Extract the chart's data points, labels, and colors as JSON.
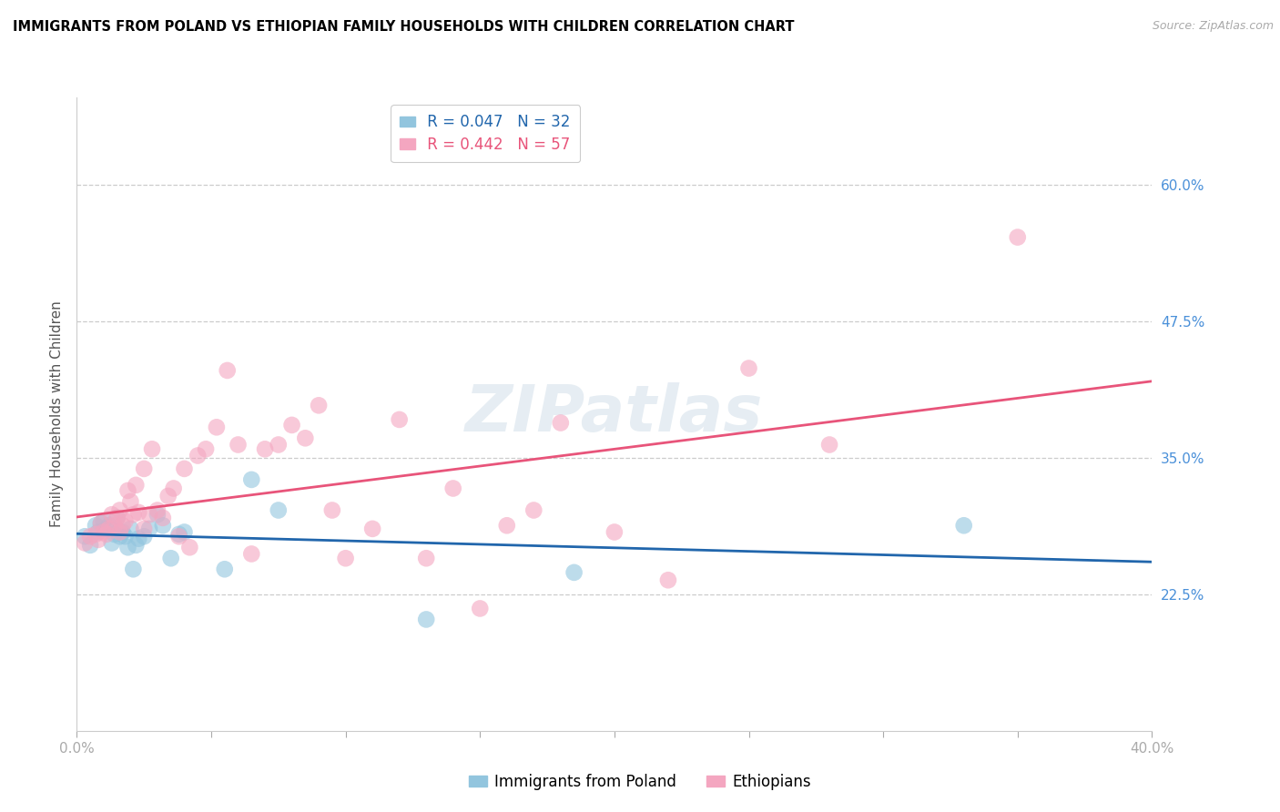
{
  "title": "IMMIGRANTS FROM POLAND VS ETHIOPIAN FAMILY HOUSEHOLDS WITH CHILDREN CORRELATION CHART",
  "source": "Source: ZipAtlas.com",
  "ylabel": "Family Households with Children",
  "ytick_labels": [
    "22.5%",
    "35.0%",
    "47.5%",
    "60.0%"
  ],
  "ytick_values": [
    0.225,
    0.35,
    0.475,
    0.6
  ],
  "xlim": [
    0.0,
    0.4
  ],
  "ylim": [
    0.1,
    0.68
  ],
  "legend_poland_R": "0.047",
  "legend_poland_N": "32",
  "legend_ethiopia_R": "0.442",
  "legend_ethiopia_N": "57",
  "scatter_color_poland": "#92c5de",
  "scatter_color_ethiopia": "#f4a6c0",
  "line_color_poland": "#2166ac",
  "line_color_ethiopia": "#e8547a",
  "label_color": "#4a90d9",
  "watermark": "ZIPatlas",
  "poland_x": [
    0.003,
    0.005,
    0.007,
    0.008,
    0.009,
    0.01,
    0.011,
    0.012,
    0.013,
    0.014,
    0.015,
    0.016,
    0.017,
    0.018,
    0.019,
    0.02,
    0.021,
    0.022,
    0.023,
    0.025,
    0.027,
    0.03,
    0.032,
    0.035,
    0.038,
    0.04,
    0.055,
    0.065,
    0.075,
    0.13,
    0.185,
    0.33
  ],
  "poland_y": [
    0.278,
    0.27,
    0.288,
    0.282,
    0.29,
    0.292,
    0.285,
    0.288,
    0.272,
    0.28,
    0.295,
    0.278,
    0.282,
    0.278,
    0.268,
    0.285,
    0.248,
    0.27,
    0.276,
    0.278,
    0.285,
    0.298,
    0.288,
    0.258,
    0.28,
    0.282,
    0.248,
    0.33,
    0.302,
    0.202,
    0.245,
    0.288
  ],
  "ethiopia_x": [
    0.003,
    0.005,
    0.007,
    0.008,
    0.009,
    0.01,
    0.011,
    0.012,
    0.013,
    0.014,
    0.015,
    0.016,
    0.016,
    0.017,
    0.018,
    0.019,
    0.02,
    0.021,
    0.022,
    0.023,
    0.025,
    0.025,
    0.027,
    0.028,
    0.03,
    0.032,
    0.034,
    0.036,
    0.038,
    0.04,
    0.042,
    0.045,
    0.048,
    0.052,
    0.056,
    0.06,
    0.065,
    0.07,
    0.075,
    0.08,
    0.085,
    0.09,
    0.095,
    0.1,
    0.11,
    0.12,
    0.13,
    0.14,
    0.15,
    0.16,
    0.17,
    0.18,
    0.2,
    0.22,
    0.25,
    0.28,
    0.35
  ],
  "ethiopia_y": [
    0.272,
    0.278,
    0.28,
    0.275,
    0.29,
    0.282,
    0.28,
    0.285,
    0.298,
    0.288,
    0.295,
    0.302,
    0.282,
    0.288,
    0.292,
    0.32,
    0.31,
    0.298,
    0.325,
    0.3,
    0.285,
    0.34,
    0.298,
    0.358,
    0.302,
    0.295,
    0.315,
    0.322,
    0.278,
    0.34,
    0.268,
    0.352,
    0.358,
    0.378,
    0.43,
    0.362,
    0.262,
    0.358,
    0.362,
    0.38,
    0.368,
    0.398,
    0.302,
    0.258,
    0.285,
    0.385,
    0.258,
    0.322,
    0.212,
    0.288,
    0.302,
    0.382,
    0.282,
    0.238,
    0.432,
    0.362,
    0.552
  ]
}
